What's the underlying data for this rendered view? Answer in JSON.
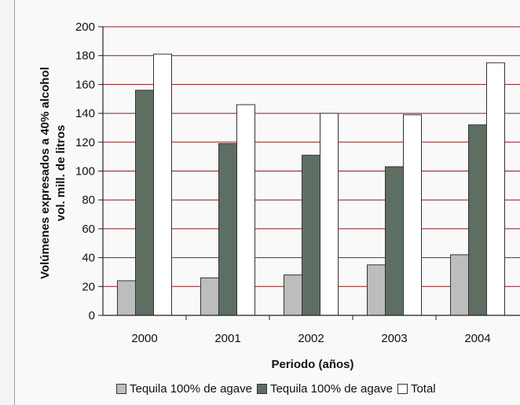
{
  "chart_data": {
    "type": "bar",
    "categories": [
      "2000",
      "2001",
      "2002",
      "2003",
      "2004"
    ],
    "series": [
      {
        "name": "Tequila 100% de agave",
        "color": "#bdbdbd",
        "values": [
          24,
          26,
          28,
          35,
          42
        ]
      },
      {
        "name": "Tequila 100% de agave",
        "color": "#5f6e63",
        "values": [
          156,
          119,
          111,
          103,
          132
        ]
      },
      {
        "name": "Total",
        "color": "#ffffff",
        "values": [
          181,
          146,
          140,
          139,
          175
        ]
      }
    ],
    "xlabel": "Periodo (años)",
    "ylabel": [
      "Volúmenes expresados a 40% alcohol",
      "vol. mill. de litros"
    ],
    "ylim": [
      0,
      200
    ],
    "yticks": [
      "0",
      "20",
      "40",
      "60",
      "80",
      "100",
      "120",
      "140",
      "160",
      "180",
      "200"
    ],
    "grid": true,
    "gridline_color": "#8b1a1a",
    "legend_position": "bottom"
  }
}
